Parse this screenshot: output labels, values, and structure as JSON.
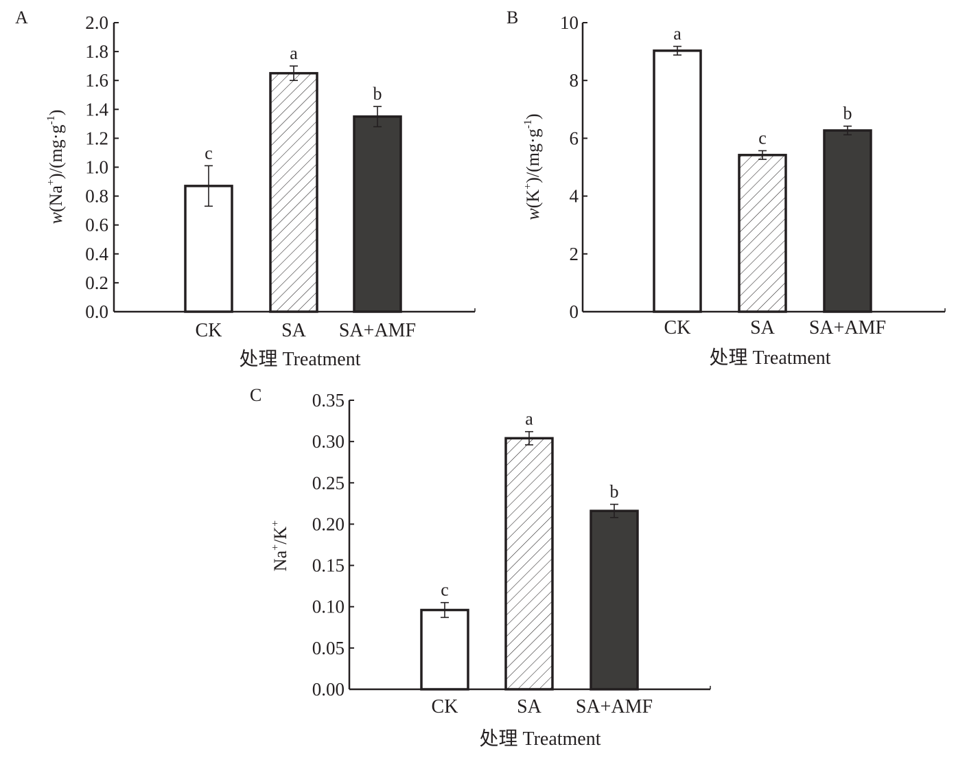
{
  "chart_data": [
    {
      "panel": "A",
      "type": "bar",
      "title": "",
      "xlabel": "处理 Treatment",
      "ylabel": {
        "prefix": "w",
        "main": "(Na",
        "sup1": "+",
        "mid": ")/(mg·g",
        "sup2": "-1",
        "end": ")"
      },
      "categories": [
        "CK",
        "SA",
        "SA+AMF"
      ],
      "values": [
        0.87,
        1.65,
        1.35
      ],
      "errors": [
        0.14,
        0.05,
        0.07
      ],
      "significance": [
        "c",
        "a",
        "b"
      ],
      "ylim": [
        0,
        2.0
      ],
      "yticks": [
        0.0,
        0.2,
        0.4,
        0.6,
        0.8,
        1.0,
        1.2,
        1.4,
        1.6,
        1.8,
        2.0
      ],
      "ytick_labels": [
        "0.0",
        "0.2",
        "0.4",
        "0.6",
        "0.8",
        "1.0",
        "1.2",
        "1.4",
        "1.6",
        "1.8",
        "2.0"
      ],
      "grid": false
    },
    {
      "panel": "B",
      "type": "bar",
      "title": "",
      "xlabel": "处理 Treatment",
      "ylabel": {
        "prefix": "w",
        "main": "(K",
        "sup1": "+",
        "mid": ")/(mg·g",
        "sup2": "-1",
        "end": ")"
      },
      "categories": [
        "CK",
        "SA",
        "SA+AMF"
      ],
      "values": [
        9.03,
        5.42,
        6.27
      ],
      "errors": [
        0.15,
        0.15,
        0.15
      ],
      "significance": [
        "a",
        "c",
        "b"
      ],
      "ylim": [
        0,
        10
      ],
      "yticks": [
        0,
        2,
        4,
        6,
        8,
        10
      ],
      "ytick_labels": [
        "0",
        "2",
        "4",
        "6",
        "8",
        "10"
      ],
      "grid": false
    },
    {
      "panel": "C",
      "type": "bar",
      "title": "",
      "xlabel": "处理 Treatment",
      "ylabel": {
        "prefix": "",
        "main": "Na",
        "sup1": "+",
        "mid": "/K",
        "sup2": "+",
        "end": ""
      },
      "categories": [
        "CK",
        "SA",
        "SA+AMF"
      ],
      "values": [
        0.096,
        0.304,
        0.216
      ],
      "errors": [
        0.009,
        0.008,
        0.008
      ],
      "significance": [
        "c",
        "a",
        "b"
      ],
      "ylim": [
        0,
        0.35
      ],
      "yticks": [
        0.0,
        0.05,
        0.1,
        0.15,
        0.2,
        0.25,
        0.3,
        0.35
      ],
      "ytick_labels": [
        "0.00",
        "0.05",
        "0.10",
        "0.15",
        "0.20",
        "0.25",
        "0.30",
        "0.35"
      ],
      "grid": false
    }
  ],
  "colors": {
    "axis": "#231f20",
    "ck_fill": "#ffffff",
    "sa_fill": "#ffffff",
    "sa_hatch": "#231f20",
    "amf_fill": "#3d3c3a"
  }
}
